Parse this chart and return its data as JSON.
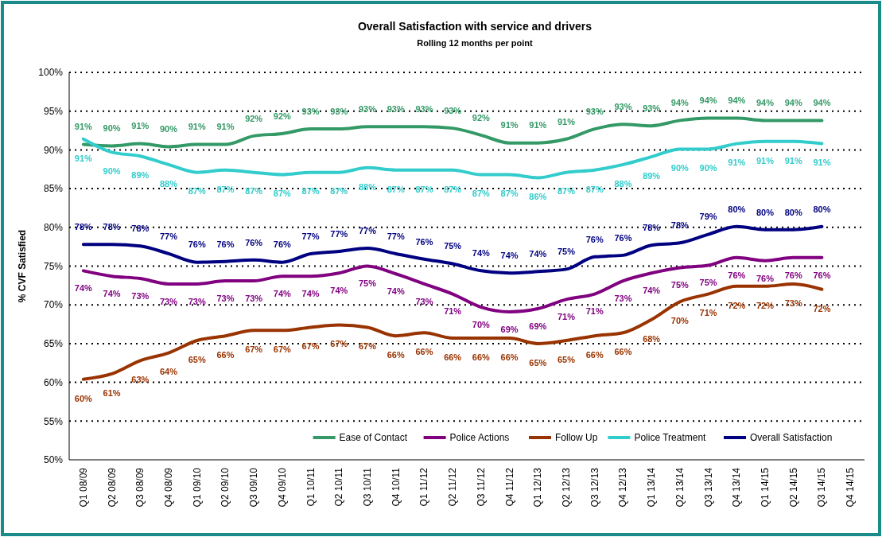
{
  "chart_data": {
    "type": "line",
    "title": "Overall Satisfaction with service and drivers",
    "subtitle": "Rolling 12 months per point",
    "ylabel": "% CVF Satisfied",
    "categories": [
      "Q1 08/09",
      "Q2 08/09",
      "Q3 08/09",
      "Q4 08/09",
      "Q1 09/10",
      "Q2 09/10",
      "Q3 09/10",
      "Q4 09/10",
      "Q1 10/11",
      "Q2 10/11",
      "Q3 10/11",
      "Q4 10/11",
      "Q1 11/12",
      "Q2 11/12",
      "Q3 11/12",
      "Q4 11/12",
      "Q1 12/13",
      "Q2 12/13",
      "Q3 12/13",
      "Q4 12/13",
      "Q1 13/14",
      "Q2 13/14",
      "Q3 13/14",
      "Q4 13/14",
      "Q1 14/15",
      "Q2 14/15",
      "Q3 14/15",
      "Q4 14/15"
    ],
    "ylim": [
      50,
      100
    ],
    "yticks": [
      {
        "value": 50,
        "label": "50%"
      },
      {
        "value": 55,
        "label": "55%"
      },
      {
        "value": 60,
        "label": "60%"
      },
      {
        "value": 65,
        "label": "65%"
      },
      {
        "value": 70,
        "label": "70%"
      },
      {
        "value": 75,
        "label": "75%"
      },
      {
        "value": 80,
        "label": "80%"
      },
      {
        "value": 85,
        "label": "85%"
      },
      {
        "value": 90,
        "label": "90%"
      },
      {
        "value": 95,
        "label": "95%"
      },
      {
        "value": 100,
        "label": "100%"
      }
    ],
    "grid": "y",
    "legend": "bottom right",
    "marker": "none",
    "line_style": "solid",
    "series": [
      {
        "name": "Ease of Contact",
        "color": "#339966",
        "values": [
          90.7,
          90.5,
          90.8,
          90.4,
          90.7,
          90.7,
          91.8,
          92.1,
          92.7,
          92.7,
          93.0,
          93.0,
          93.0,
          92.8,
          91.9,
          90.9,
          90.9,
          91.4,
          92.7,
          93.3,
          93.1,
          93.8,
          94.1,
          94.1,
          93.8,
          93.8,
          93.8,
          null
        ],
        "value_labels": [
          "91%",
          "90%",
          "91%",
          "90%",
          "91%",
          "91%",
          "92%",
          "92%",
          "93%",
          "93%",
          "93%",
          "93%",
          "93%",
          "93%",
          "92%",
          "91%",
          "91%",
          "91%",
          "93%",
          "93%",
          "93%",
          "94%",
          "94%",
          "94%",
          "94%",
          "94%",
          "94%",
          null
        ]
      },
      {
        "name": "Police Actions",
        "color": "#800080",
        "values": [
          74.4,
          73.7,
          73.4,
          72.7,
          72.7,
          73.1,
          73.1,
          73.7,
          73.7,
          74.1,
          75.0,
          74.0,
          72.7,
          71.4,
          69.7,
          69.1,
          69.5,
          70.7,
          71.4,
          73.1,
          74.1,
          74.8,
          75.1,
          76.1,
          75.7,
          76.1,
          76.1,
          null
        ],
        "value_labels": [
          "74%",
          "74%",
          "73%",
          "73%",
          "73%",
          "73%",
          "73%",
          "74%",
          "74%",
          "74%",
          "75%",
          "74%",
          "73%",
          "71%",
          "70%",
          "69%",
          "69%",
          "71%",
          "71%",
          "73%",
          "74%",
          "75%",
          "75%",
          "76%",
          "76%",
          "76%",
          "76%",
          null
        ]
      },
      {
        "name": "Follow Up",
        "color": "#993300",
        "values": [
          60.4,
          61.1,
          62.8,
          63.8,
          65.4,
          66.0,
          66.7,
          66.7,
          67.1,
          67.4,
          67.1,
          66.0,
          66.4,
          65.7,
          65.7,
          65.7,
          65.0,
          65.4,
          66.0,
          66.4,
          68.1,
          70.4,
          71.4,
          72.4,
          72.4,
          72.7,
          72.0,
          null
        ],
        "value_labels": [
          "60%",
          "61%",
          "63%",
          "64%",
          "65%",
          "66%",
          "67%",
          "67%",
          "67%",
          "67%",
          "67%",
          "66%",
          "66%",
          "66%",
          "66%",
          "66%",
          "65%",
          "65%",
          "66%",
          "66%",
          "68%",
          "70%",
          "71%",
          "72%",
          "72%",
          "73%",
          "72%",
          null
        ]
      },
      {
        "name": "Police Treatment",
        "color": "#33cccc",
        "values": [
          91.4,
          89.7,
          89.2,
          88.1,
          87.1,
          87.4,
          87.1,
          86.8,
          87.1,
          87.1,
          87.7,
          87.4,
          87.4,
          87.4,
          86.8,
          86.8,
          86.4,
          87.1,
          87.4,
          88.1,
          89.1,
          90.1,
          90.1,
          90.8,
          91.1,
          91.1,
          90.8,
          null
        ],
        "value_labels": [
          "91%",
          "90%",
          "89%",
          "88%",
          "87%",
          "87%",
          "87%",
          "87%",
          "87%",
          "87%",
          "88%",
          "87%",
          "87%",
          "87%",
          "87%",
          "87%",
          "86%",
          "87%",
          "87%",
          "88%",
          "89%",
          "90%",
          "90%",
          "91%",
          "91%",
          "91%",
          "91%",
          null
        ]
      },
      {
        "name": "Overall Satisfaction",
        "color": "#000080",
        "values": [
          77.8,
          77.8,
          77.6,
          76.6,
          75.5,
          75.6,
          75.8,
          75.5,
          76.6,
          76.9,
          77.3,
          76.6,
          75.9,
          75.3,
          74.4,
          74.1,
          74.3,
          74.6,
          76.2,
          76.4,
          77.7,
          78.0,
          79.1,
          80.1,
          79.7,
          79.7,
          80.1,
          null
        ],
        "value_labels": [
          "78%",
          "78%",
          "78%",
          "77%",
          "76%",
          "76%",
          "76%",
          "76%",
          "77%",
          "77%",
          "77%",
          "77%",
          "76%",
          "75%",
          "74%",
          "74%",
          "74%",
          "75%",
          "76%",
          "76%",
          "78%",
          "78%",
          "79%",
          "80%",
          "80%",
          "80%",
          "80%",
          null
        ]
      }
    ]
  }
}
